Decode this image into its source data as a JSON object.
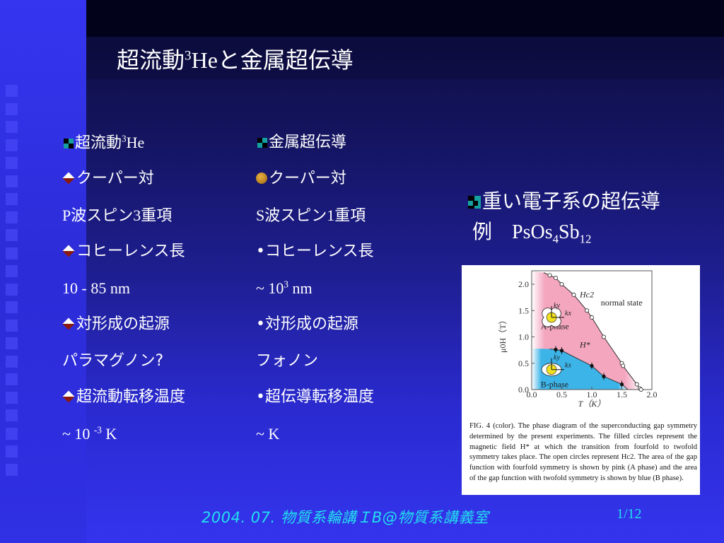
{
  "title": {
    "pre": "超流動",
    "sup": "3",
    "post_latin": "He",
    "post": "と金属超伝導"
  },
  "left_column": {
    "heading": {
      "pre": "超流動",
      "sup": "3",
      "post": "He"
    },
    "items": [
      {
        "bullet": "diamond",
        "text": "クーパー対"
      },
      {
        "bullet": "none",
        "text": "P波スピン3重項"
      },
      {
        "bullet": "diamond",
        "text": "コヒーレンス長"
      },
      {
        "bullet": "none",
        "text": "10 - 85 nm"
      },
      {
        "bullet": "diamond",
        "text": "対形成の起源"
      },
      {
        "bullet": "none",
        "text": "パラマグノン?"
      },
      {
        "bullet": "diamond",
        "text": "超流動転移温度"
      },
      {
        "bullet": "none",
        "pre": "~ 10 ",
        "sup": "-3",
        "post": " K"
      }
    ]
  },
  "right_column": {
    "heading": "金属超伝導",
    "items": [
      {
        "bullet": "ball",
        "text": "クーパー対"
      },
      {
        "bullet": "none",
        "text": "S波スピン1重項"
      },
      {
        "bullet": "dot",
        "text": "•コヒーレンス長"
      },
      {
        "bullet": "none",
        "pre": "~  10",
        "sup": "3",
        "post": " nm"
      },
      {
        "bullet": "dot",
        "text": "•対形成の起源"
      },
      {
        "bullet": "none",
        "text": "フォノン"
      },
      {
        "bullet": "dot",
        "text": "•超伝導転移温度"
      },
      {
        "bullet": "none",
        "text": "~ K"
      }
    ]
  },
  "heavy_fermion": {
    "heading": "重い電子系の超伝導",
    "example_label": "例",
    "formula": {
      "a": "PsOs",
      "s1": "4",
      "b": "Sb",
      "s2": "12"
    }
  },
  "figure": {
    "xlabel": "T（K）",
    "ylabel": "μ0H（T）",
    "xticks": [
      "0.0",
      "0.5",
      "1.0",
      "1.5",
      "2.0"
    ],
    "yticks": [
      "0.0",
      "0.5",
      "1.0",
      "1.5",
      "2.0"
    ],
    "xlim": [
      0,
      2.0
    ],
    "ylim": [
      0,
      2.3
    ],
    "labels": {
      "hc2": "Hc2",
      "hstar": "H*",
      "normal": "normal state",
      "a_phase": "A-phase",
      "b_phase": "B-phase",
      "ky": "ky",
      "kx": "kx"
    },
    "colors": {
      "a_phase": "#f4a6bf",
      "b_phase": "#3cb4e8",
      "order_param": "#f0e020"
    },
    "hc2_points": [
      [
        0.3,
        2.17
      ],
      [
        0.4,
        2.12
      ],
      [
        0.5,
        2.0
      ],
      [
        0.7,
        1.8
      ],
      [
        0.92,
        1.5
      ],
      [
        1.0,
        1.37
      ],
      [
        1.2,
        1.0
      ],
      [
        1.5,
        0.5
      ],
      [
        1.52,
        0.45
      ],
      [
        1.75,
        0.1
      ],
      [
        1.8,
        0.02
      ],
      [
        1.82,
        0.0
      ]
    ],
    "hstar_points": [
      [
        0.4,
        0.76
      ],
      [
        0.5,
        0.74
      ],
      [
        1.0,
        0.45
      ],
      [
        1.2,
        0.25
      ],
      [
        1.5,
        0.1
      ]
    ],
    "caption": "FIG. 4 (color).  The phase diagram of the superconducting gap symmetry determined by the present experiments. The filled circles represent the magnetic field H* at which the transition from fourfold to twofold symmetry takes place. The open circles represent Hc2. The area of the gap function with fourfold symmetry is shown by pink (A phase) and the area of the gap function with twofold symmetry is shown by blue (B phase)."
  },
  "footer": {
    "text": "2004. 07. 物質系輪講ＩB@物質系講義室",
    "page": "1/12"
  }
}
